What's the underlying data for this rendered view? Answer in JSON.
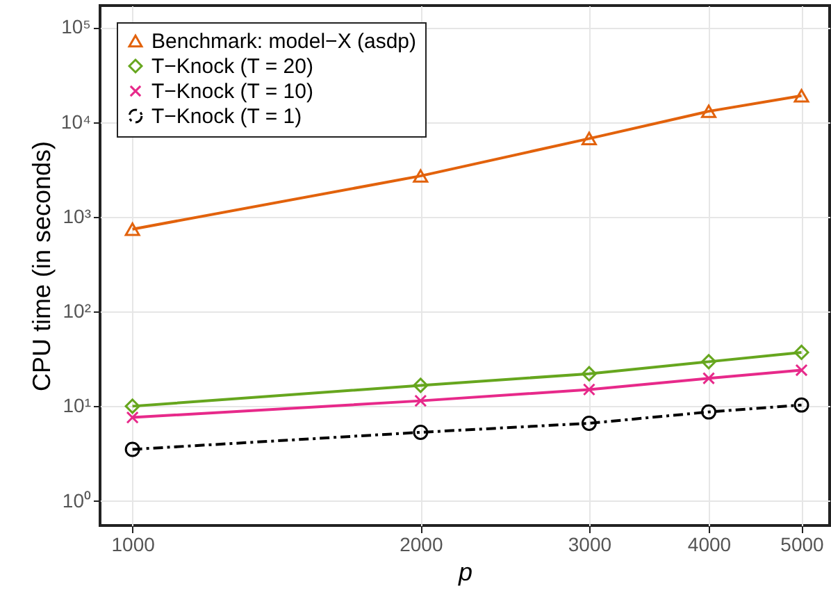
{
  "chart_data": {
    "type": "line",
    "xlabel": "p",
    "ylabel": "CPU time (in seconds)",
    "x": [
      1000,
      2000,
      3000,
      4000,
      5000
    ],
    "series": [
      {
        "name": "Benchmark: model−X (asdp)",
        "color": "#e2620c",
        "marker": "triangle",
        "line_style": "solid",
        "values": [
          740,
          2700,
          6700,
          13000,
          19000
        ]
      },
      {
        "name": "T−Knock (T = 20)",
        "color": "#66a61e",
        "marker": "diamond",
        "line_style": "solid",
        "values": [
          10,
          16.6,
          22,
          29.5,
          37
        ]
      },
      {
        "name": "T−Knock (T = 10)",
        "color": "#e7298a",
        "marker": "cross",
        "line_style": "solid",
        "values": [
          7.6,
          11.4,
          15,
          19.7,
          24
        ]
      },
      {
        "name": "T−Knock (T = 1)",
        "color": "#000000",
        "marker": "circle",
        "line_style": "dashed",
        "values": [
          3.5,
          5.3,
          6.6,
          8.7,
          10.3
        ]
      }
    ],
    "log": "xy",
    "xlim": [
      925,
      5350
    ],
    "xticks": [
      1000,
      2000,
      3000,
      4000,
      5000
    ],
    "ylim": [
      0.55,
      170000
    ],
    "yticks": [
      {
        "value": 1,
        "label": "10⁰"
      },
      {
        "value": 10,
        "label": "10¹"
      },
      {
        "value": 100,
        "label": "10²"
      },
      {
        "value": 1000,
        "label": "10³"
      },
      {
        "value": 10000,
        "label": "10⁴"
      },
      {
        "value": 100000,
        "label": "10⁵"
      }
    ],
    "grid": true,
    "legend": "top left"
  }
}
